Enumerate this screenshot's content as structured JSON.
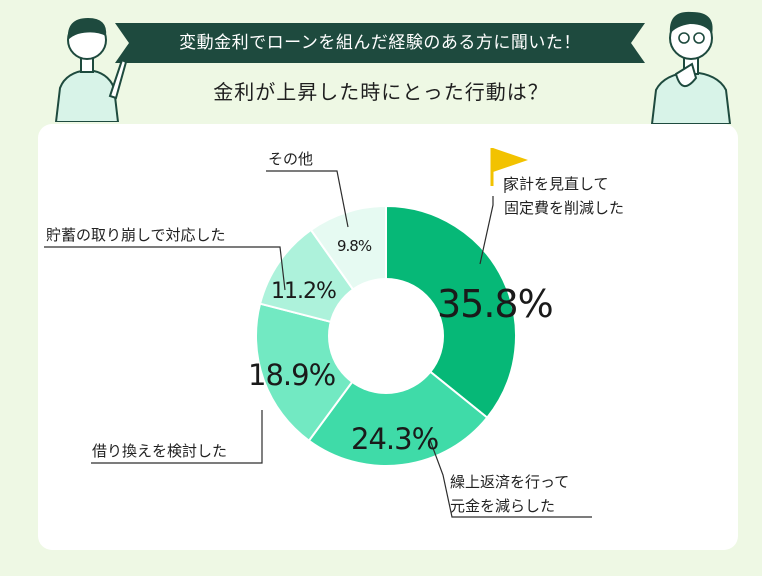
{
  "header": {
    "banner": "変動金利でローンを組んだ経験のある方に聞いた！",
    "question": "金利が上昇した時にとった行動は？"
  },
  "colors": {
    "background": "#eef8e4",
    "banner": "#1e4a3e",
    "flag": "#f2c200"
  },
  "chart_data": {
    "type": "pie",
    "donut": true,
    "categories": [
      "家計を見直して固定費を削減した",
      "繰上返済を行って元金を減らした",
      "借り換えを検討した",
      "貯蓄の取り崩しで対応した",
      "その他"
    ],
    "values": [
      35.8,
      24.3,
      18.9,
      11.2,
      9.8
    ],
    "value_labels": [
      "35.8%",
      "24.3%",
      "18.9%",
      "11.2%",
      "9.8%"
    ],
    "label_lines": [
      [
        "家計を見直して",
        "固定費を削減した"
      ],
      [
        "繰上返済を行って",
        "元金を減らした"
      ],
      [
        "借り換えを検討した"
      ],
      [
        "貯蓄の取り崩しで対応した"
      ],
      [
        "その他"
      ]
    ],
    "colors": [
      "#06b877",
      "#3fdba8",
      "#72e9c2",
      "#adf2db",
      "#e6faf2"
    ]
  }
}
